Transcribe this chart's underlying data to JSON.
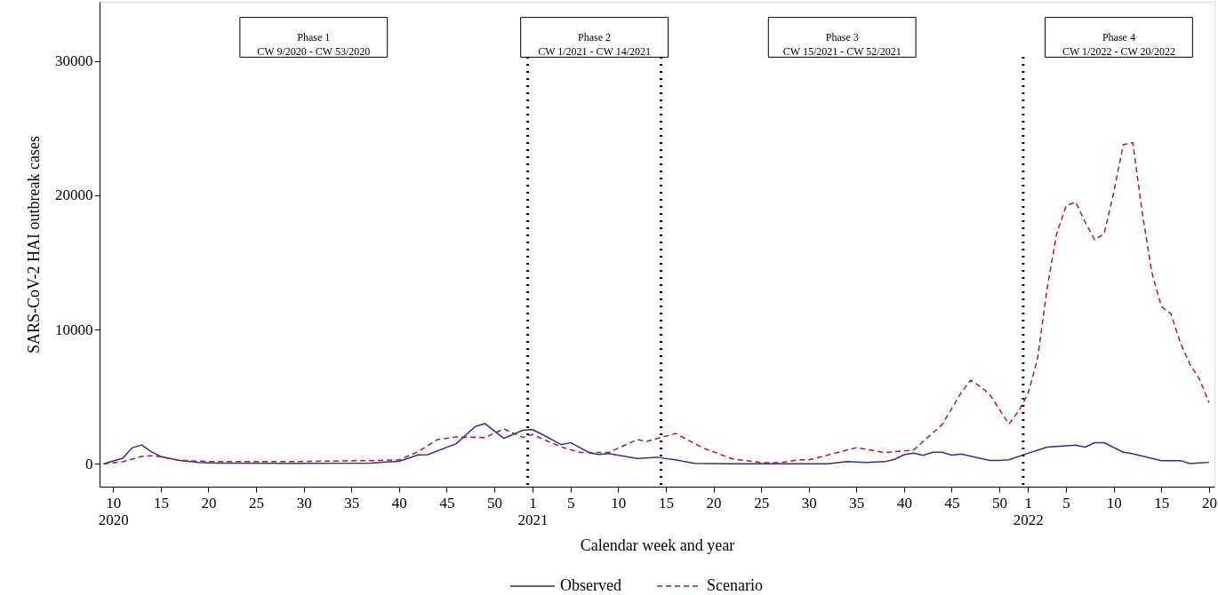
{
  "chart_data": {
    "type": "line",
    "xlabel": "Calendar week and year",
    "ylabel": "SARS-CoV-2 HAI outbreak cases",
    "xlim": [
      "2020-02-21",
      "2022-05-20"
    ],
    "xticks": [
      {
        "value": "2020-03-02",
        "label": "10\n2020"
      },
      {
        "value": "2020-04-06",
        "label": "15"
      },
      {
        "value": "2020-05-11",
        "label": "20"
      },
      {
        "value": "2020-06-15",
        "label": "25"
      },
      {
        "value": "2020-07-20",
        "label": "30"
      },
      {
        "value": "2020-08-24",
        "label": "35"
      },
      {
        "value": "2020-09-28",
        "label": "40"
      },
      {
        "value": "2020-11-02",
        "label": "45"
      },
      {
        "value": "2020-12-07",
        "label": "50"
      },
      {
        "value": "2021-01-04",
        "label": "1\n2021"
      },
      {
        "value": "2021-02-01",
        "label": "5"
      },
      {
        "value": "2021-03-08",
        "label": "10"
      },
      {
        "value": "2021-04-12",
        "label": "15"
      },
      {
        "value": "2021-05-17",
        "label": "20"
      },
      {
        "value": "2021-06-21",
        "label": "25"
      },
      {
        "value": "2021-07-26",
        "label": "30"
      },
      {
        "value": "2021-08-30",
        "label": "35"
      },
      {
        "value": "2021-10-04",
        "label": "40"
      },
      {
        "value": "2021-11-08",
        "label": "45"
      },
      {
        "value": "2021-12-13",
        "label": "50"
      },
      {
        "value": "2022-01-03",
        "label": "1\n2022"
      },
      {
        "value": "2022-01-31",
        "label": "5"
      },
      {
        "value": "2022-03-07",
        "label": "10"
      },
      {
        "value": "2022-04-11",
        "label": "15"
      },
      {
        "value": "2022-05-16",
        "label": "20"
      }
    ],
    "ylim": [
      -1700,
      34400
    ],
    "yticks": [
      0,
      10000,
      20000,
      30000
    ],
    "legend": "bottom",
    "series": [
      {
        "name": "Observed",
        "color": "#2b2f9e",
        "line_style": "solid",
        "x": [
          "2020-02-24",
          "2020-03-09",
          "2020-03-16",
          "2020-03-23",
          "2020-03-30",
          "2020-04-06",
          "2020-04-20",
          "2020-05-04",
          "2020-05-18",
          "2020-07-13",
          "2020-09-07",
          "2020-09-21",
          "2020-09-28",
          "2020-10-12",
          "2020-10-19",
          "2020-11-09",
          "2020-11-23",
          "2020-11-30",
          "2020-12-14",
          "2020-12-28",
          "2021-01-04",
          "2021-01-11",
          "2021-01-25",
          "2021-02-01",
          "2021-02-15",
          "2021-02-22",
          "2021-03-01",
          "2021-03-22",
          "2021-04-05",
          "2021-04-19",
          "2021-05-03",
          "2021-05-31",
          "2021-06-28",
          "2021-08-09",
          "2021-08-23",
          "2021-09-06",
          "2021-09-20",
          "2021-09-27",
          "2021-10-04",
          "2021-10-11",
          "2021-10-18",
          "2021-10-25",
          "2021-11-01",
          "2021-11-08",
          "2021-11-15",
          "2021-12-06",
          "2021-12-13",
          "2021-12-20",
          "2022-01-03",
          "2022-01-17",
          "2022-02-07",
          "2022-02-14",
          "2022-02-21",
          "2022-02-28",
          "2022-03-14",
          "2022-03-21",
          "2022-04-11",
          "2022-04-25",
          "2022-05-02",
          "2022-05-09",
          "2022-05-16"
        ],
        "values": [
          0,
          420,
          1200,
          1400,
          900,
          530,
          250,
          100,
          50,
          30,
          60,
          150,
          180,
          660,
          680,
          1500,
          2780,
          3000,
          1900,
          2500,
          2550,
          2200,
          1430,
          1580,
          820,
          700,
          760,
          400,
          490,
          300,
          40,
          0,
          0,
          0,
          160,
          100,
          160,
          330,
          680,
          790,
          630,
          860,
          860,
          650,
          730,
          250,
          250,
          300,
          790,
          1240,
          1390,
          1240,
          1570,
          1570,
          860,
          750,
          240,
          240,
          20,
          70,
          110
        ]
      },
      {
        "name": "Scenario",
        "color": "#b2182b",
        "line_style": "dashed",
        "x": [
          "2020-02-24",
          "2020-03-09",
          "2020-03-23",
          "2020-03-30",
          "2020-04-06",
          "2020-04-20",
          "2020-05-11",
          "2020-07-13",
          "2020-09-07",
          "2020-09-28",
          "2020-10-12",
          "2020-10-26",
          "2020-11-09",
          "2020-11-30",
          "2020-12-14",
          "2020-12-28",
          "2021-01-04",
          "2021-01-25",
          "2021-02-08",
          "2021-03-01",
          "2021-03-22",
          "2021-03-29",
          "2021-04-19",
          "2021-05-10",
          "2021-05-31",
          "2021-06-21",
          "2021-07-05",
          "2021-07-19",
          "2021-07-26",
          "2021-08-30",
          "2021-09-20",
          "2021-10-11",
          "2021-11-01",
          "2021-11-15",
          "2021-11-22",
          "2021-11-29",
          "2021-12-06",
          "2021-12-20",
          "2021-12-27",
          "2022-01-03",
          "2022-01-10",
          "2022-01-17",
          "2022-01-24",
          "2022-01-31",
          "2022-02-07",
          "2022-02-14",
          "2022-02-21",
          "2022-02-28",
          "2022-03-07",
          "2022-03-14",
          "2022-03-21",
          "2022-03-28",
          "2022-04-04",
          "2022-04-11",
          "2022-04-18",
          "2022-04-25",
          "2022-05-02",
          "2022-05-09",
          "2022-05-16"
        ],
        "values": [
          0,
          150,
          550,
          600,
          530,
          250,
          170,
          170,
          240,
          290,
          900,
          1800,
          2000,
          1960,
          2600,
          1960,
          2180,
          1260,
          840,
          840,
          1810,
          1670,
          2260,
          1150,
          370,
          90,
          90,
          300,
          300,
          1200,
          840,
          1030,
          2920,
          5300,
          6230,
          5760,
          5160,
          2960,
          3900,
          5200,
          7800,
          13000,
          17100,
          19200,
          19500,
          18000,
          16680,
          17130,
          20200,
          23760,
          23920,
          18670,
          14250,
          11720,
          11170,
          9000,
          7410,
          6310,
          4550
        ]
      }
    ],
    "ref_lines": [
      {
        "axis": "x",
        "value": "2020-12-31T12:00",
        "color": "#000000",
        "line_style": "dotted"
      },
      {
        "axis": "x",
        "value": "2021-04-08T12:00",
        "color": "#000000",
        "line_style": "dotted"
      },
      {
        "axis": "x",
        "value": "2021-12-30T12:00",
        "color": "#000000",
        "line_style": "dotted"
      }
    ],
    "annotations": [
      "Phase 1\nCW 9/2020 - CW 53/2020",
      "Phase 2\nCW 1/2021 - CW 14/2021",
      "Phase 3\nCW 15/2021 - CW 52/2021",
      "Phase 4\nCW 1/2022 - CW 20/2022"
    ]
  }
}
